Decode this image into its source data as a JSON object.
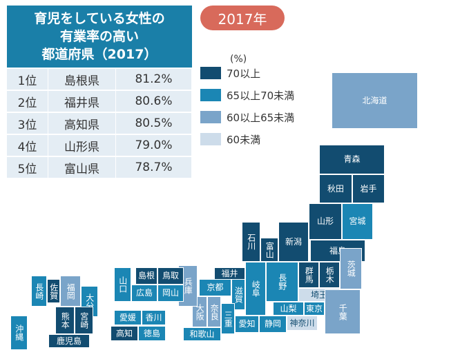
{
  "table": {
    "title": [
      "育児をしている女性の",
      "有業率の高い",
      "都道府県（2017）"
    ],
    "rows": [
      [
        "1位",
        "島根県",
        "81.2%"
      ],
      [
        "2位",
        "福井県",
        "80.6%"
      ],
      [
        "3位",
        "高知県",
        "80.5%"
      ],
      [
        "4位",
        "山形県",
        "79.0%"
      ],
      [
        "5位",
        "富山県",
        "78.7%"
      ]
    ]
  },
  "badge": "2017年",
  "legend": {
    "unit": "(%)",
    "items": [
      {
        "label": "70以上",
        "color": "#124c70"
      },
      {
        "label": "65以上70未満",
        "color": "#1b86b4"
      },
      {
        "label": "60以上65未満",
        "color": "#7aa4c9"
      },
      {
        "label": "60未満",
        "color": "#cddcea"
      }
    ]
  },
  "prefectures": [
    {
      "name": "北海道",
      "color": "#7aa4c9"
    },
    {
      "name": "青森",
      "color": "#124c70"
    },
    {
      "name": "秋田",
      "color": "#124c70"
    },
    {
      "name": "岩手",
      "color": "#124c70"
    },
    {
      "name": "山形",
      "color": "#124c70"
    },
    {
      "name": "宮城",
      "color": "#1b86b4"
    },
    {
      "name": "福島",
      "color": "#124c70"
    },
    {
      "name": "新潟",
      "color": "#124c70"
    },
    {
      "name": "石川",
      "color": "#124c70"
    },
    {
      "name": "富山",
      "color": "#124c70"
    },
    {
      "name": "長野",
      "color": "#1b86b4"
    },
    {
      "name": "群馬",
      "color": "#124c70"
    },
    {
      "name": "栃木",
      "color": "#124c70"
    },
    {
      "name": "茨城",
      "color": "#7aa4c9"
    },
    {
      "name": "埼玉",
      "color": "#cddcea"
    },
    {
      "name": "東京",
      "color": "#1b86b4"
    },
    {
      "name": "山梨",
      "color": "#1b86b4"
    },
    {
      "name": "千葉",
      "color": "#7aa4c9"
    },
    {
      "name": "神奈川",
      "color": "#cddcea"
    },
    {
      "name": "静岡",
      "color": "#1b86b4"
    },
    {
      "name": "岐阜",
      "color": "#1b86b4"
    },
    {
      "name": "愛知",
      "color": "#1b86b4"
    },
    {
      "name": "福井",
      "color": "#124c70"
    },
    {
      "name": "滋賀",
      "color": "#1b86b4"
    },
    {
      "name": "三重",
      "color": "#1b86b4"
    },
    {
      "name": "京都",
      "color": "#1b86b4"
    },
    {
      "name": "奈良",
      "color": "#7aa4c9"
    },
    {
      "name": "大阪",
      "color": "#7aa4c9"
    },
    {
      "name": "和歌山",
      "color": "#1b86b4"
    },
    {
      "name": "兵庫",
      "color": "#7aa4c9"
    },
    {
      "name": "鳥取",
      "color": "#124c70"
    },
    {
      "name": "島根",
      "color": "#124c70"
    },
    {
      "name": "岡山",
      "color": "#1b86b4"
    },
    {
      "name": "広島",
      "color": "#1b86b4"
    },
    {
      "name": "山口",
      "color": "#1b86b4"
    },
    {
      "name": "香川",
      "color": "#1b86b4"
    },
    {
      "name": "愛媛",
      "color": "#1b86b4"
    },
    {
      "name": "高知",
      "color": "#124c70"
    },
    {
      "name": "徳島",
      "color": "#1b86b4"
    },
    {
      "name": "福岡",
      "color": "#7aa4c9"
    },
    {
      "name": "佐賀",
      "color": "#124c70"
    },
    {
      "name": "長崎",
      "color": "#1b86b4"
    },
    {
      "name": "大分",
      "color": "#1b86b4"
    },
    {
      "name": "熊本",
      "color": "#124c70"
    },
    {
      "name": "宮崎",
      "color": "#124c70"
    },
    {
      "name": "鹿児島",
      "color": "#124c70"
    },
    {
      "name": "沖縄",
      "color": "#1b86b4"
    }
  ]
}
